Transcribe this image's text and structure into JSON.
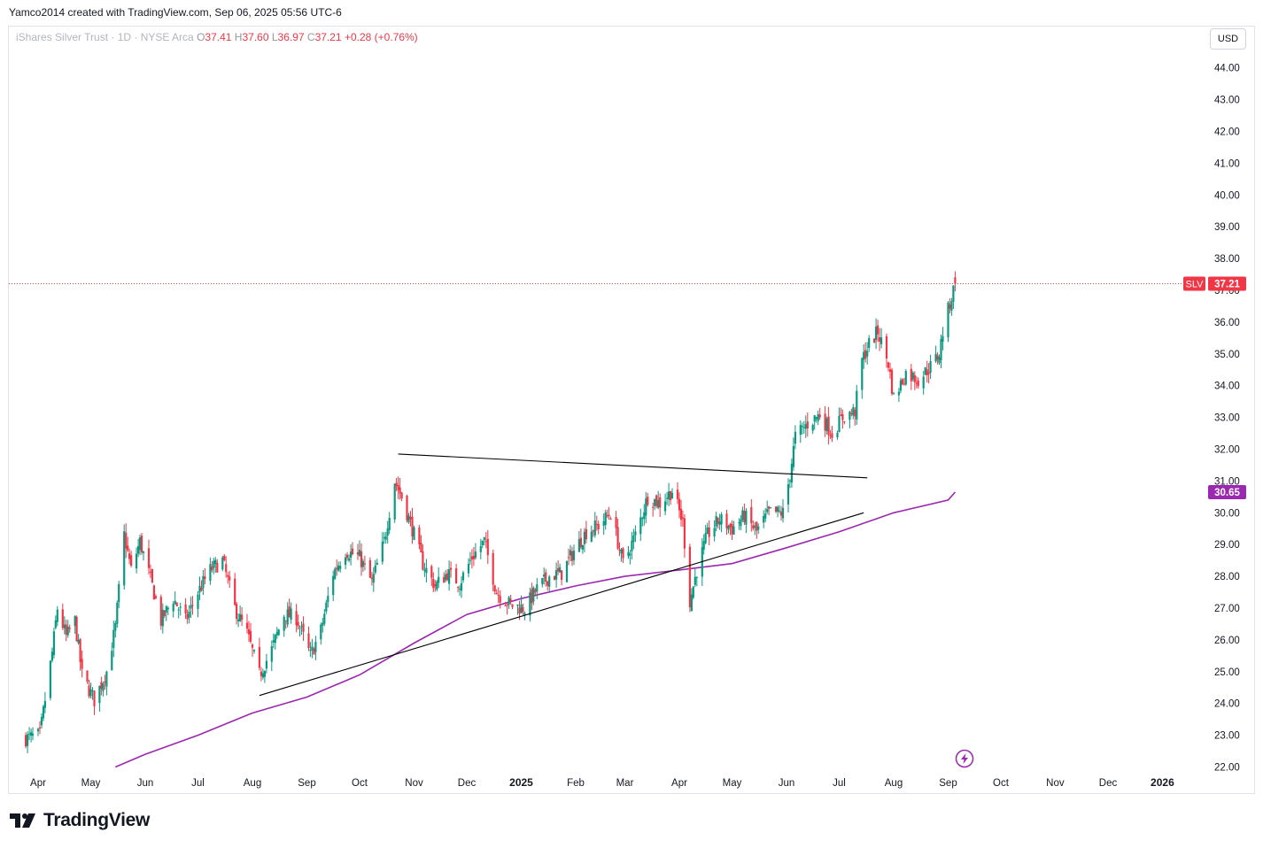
{
  "header": {
    "author_line": "Yamco2014 created with TradingView.com, Sep 06, 2025 05:56 UTC-6"
  },
  "legend": {
    "symbol_line": "iShares Silver Trust · 1D · NYSE Arca",
    "open_label": "O",
    "open": "37.41",
    "high_label": "H",
    "high": "37.60",
    "low_label": "L",
    "low": "36.97",
    "close_label": "C",
    "close": "37.21",
    "change": "+0.28 (+0.76%)"
  },
  "currency_button": "USD",
  "brand": {
    "name": "TradingView",
    "icon": "tradingview-logo-icon"
  },
  "colors": {
    "up": "#089981",
    "down": "#f23645",
    "sma": "#9c27b0",
    "trendline": "#000000",
    "price_line": "#f23645",
    "grid": "#e0e3eb"
  },
  "chart_data": {
    "type": "candlestick",
    "symbol": "SLV",
    "timeframe": "1D",
    "exchange": "NYSE Arca",
    "ylim": [
      22.0,
      44.7
    ],
    "y_ticks": [
      "22.00",
      "23.00",
      "24.00",
      "25.00",
      "26.00",
      "27.00",
      "28.00",
      "29.00",
      "30.00",
      "31.00",
      "32.00",
      "33.00",
      "34.00",
      "35.00",
      "36.00",
      "37.00",
      "38.00",
      "39.00",
      "40.00",
      "41.00",
      "42.00",
      "43.00",
      "44.00"
    ],
    "x_ticks": [
      {
        "label": "Apr",
        "date": "2024-04-01"
      },
      {
        "label": "May",
        "date": "2024-05-01"
      },
      {
        "label": "Jun",
        "date": "2024-06-01"
      },
      {
        "label": "Jul",
        "date": "2024-07-01"
      },
      {
        "label": "Aug",
        "date": "2024-08-01"
      },
      {
        "label": "Sep",
        "date": "2024-09-01"
      },
      {
        "label": "Oct",
        "date": "2024-10-01"
      },
      {
        "label": "Nov",
        "date": "2024-11-01"
      },
      {
        "label": "Dec",
        "date": "2024-12-01"
      },
      {
        "label": "2025",
        "date": "2025-01-01",
        "bold": true
      },
      {
        "label": "Feb",
        "date": "2025-02-01"
      },
      {
        "label": "Mar",
        "date": "2025-03-01"
      },
      {
        "label": "Apr",
        "date": "2025-04-01"
      },
      {
        "label": "May",
        "date": "2025-05-01"
      },
      {
        "label": "Jun",
        "date": "2025-06-01"
      },
      {
        "label": "Jul",
        "date": "2025-07-01"
      },
      {
        "label": "Aug",
        "date": "2025-08-01"
      },
      {
        "label": "Sep",
        "date": "2025-09-01"
      },
      {
        "label": "Oct",
        "date": "2025-10-01"
      },
      {
        "label": "Nov",
        "date": "2025-11-01"
      },
      {
        "label": "Dec",
        "date": "2025-12-01"
      },
      {
        "label": "2026",
        "date": "2026-01-01",
        "bold": true
      }
    ],
    "price_path": [
      [
        "2024-03-25",
        22.9
      ],
      [
        "2024-04-02",
        23.0
      ],
      [
        "2024-04-09",
        25.6
      ],
      [
        "2024-04-12",
        27.0
      ],
      [
        "2024-04-17",
        26.1
      ],
      [
        "2024-04-22",
        26.6
      ],
      [
        "2024-04-26",
        24.9
      ],
      [
        "2024-05-03",
        24.1
      ],
      [
        "2024-05-10",
        25.0
      ],
      [
        "2024-05-15",
        26.4
      ],
      [
        "2024-05-20",
        29.3
      ],
      [
        "2024-05-24",
        28.2
      ],
      [
        "2024-05-29",
        29.1
      ],
      [
        "2024-06-05",
        27.7
      ],
      [
        "2024-06-10",
        26.6
      ],
      [
        "2024-06-17",
        27.3
      ],
      [
        "2024-06-24",
        26.6
      ],
      [
        "2024-07-01",
        27.5
      ],
      [
        "2024-07-08",
        28.2
      ],
      [
        "2024-07-15",
        28.5
      ],
      [
        "2024-07-22",
        27.0
      ],
      [
        "2024-07-29",
        26.2
      ],
      [
        "2024-08-05",
        24.9
      ],
      [
        "2024-08-12",
        25.7
      ],
      [
        "2024-08-19",
        26.8
      ],
      [
        "2024-08-26",
        26.7
      ],
      [
        "2024-09-03",
        25.5
      ],
      [
        "2024-09-09",
        26.3
      ],
      [
        "2024-09-16",
        28.1
      ],
      [
        "2024-09-23",
        28.8
      ],
      [
        "2024-10-01",
        28.6
      ],
      [
        "2024-10-08",
        27.8
      ],
      [
        "2024-10-15",
        29.1
      ],
      [
        "2024-10-21",
        31.0
      ],
      [
        "2024-10-25",
        30.5
      ],
      [
        "2024-10-31",
        29.5
      ],
      [
        "2024-11-06",
        28.4
      ],
      [
        "2024-11-13",
        27.7
      ],
      [
        "2024-11-20",
        28.1
      ],
      [
        "2024-11-27",
        27.8
      ],
      [
        "2024-12-04",
        28.6
      ],
      [
        "2024-12-11",
        29.1
      ],
      [
        "2024-12-18",
        27.5
      ],
      [
        "2024-12-26",
        27.1
      ],
      [
        "2025-01-03",
        27.0
      ],
      [
        "2025-01-10",
        27.6
      ],
      [
        "2025-01-17",
        28.0
      ],
      [
        "2025-01-24",
        28.1
      ],
      [
        "2025-01-31",
        28.8
      ],
      [
        "2025-02-07",
        29.4
      ],
      [
        "2025-02-14",
        29.6
      ],
      [
        "2025-02-21",
        30.0
      ],
      [
        "2025-02-28",
        28.4
      ],
      [
        "2025-03-07",
        29.3
      ],
      [
        "2025-03-14",
        30.5
      ],
      [
        "2025-03-21",
        30.3
      ],
      [
        "2025-03-28",
        30.7
      ],
      [
        "2025-04-03",
        29.7
      ],
      [
        "2025-04-07",
        27.2
      ],
      [
        "2025-04-11",
        28.2
      ],
      [
        "2025-04-17",
        29.3
      ],
      [
        "2025-04-24",
        29.8
      ],
      [
        "2025-05-01",
        29.5
      ],
      [
        "2025-05-08",
        29.9
      ],
      [
        "2025-05-15",
        29.4
      ],
      [
        "2025-05-22",
        30.0
      ],
      [
        "2025-05-30",
        30.0
      ],
      [
        "2025-06-03",
        31.2
      ],
      [
        "2025-06-06",
        32.4
      ],
      [
        "2025-06-13",
        32.8
      ],
      [
        "2025-06-20",
        33.1
      ],
      [
        "2025-06-27",
        32.5
      ],
      [
        "2025-07-03",
        33.0
      ],
      [
        "2025-07-10",
        33.2
      ],
      [
        "2025-07-14",
        34.8
      ],
      [
        "2025-07-18",
        35.3
      ],
      [
        "2025-07-23",
        35.7
      ],
      [
        "2025-07-29",
        34.7
      ],
      [
        "2025-08-01",
        33.6
      ],
      [
        "2025-08-08",
        34.4
      ],
      [
        "2025-08-15",
        34.2
      ],
      [
        "2025-08-22",
        34.6
      ],
      [
        "2025-08-27",
        35.0
      ],
      [
        "2025-08-29",
        35.7
      ],
      [
        "2025-09-02",
        36.6
      ],
      [
        "2025-09-04",
        37.0
      ],
      [
        "2025-09-05",
        37.21
      ]
    ],
    "last_candle": {
      "date": "2025-09-05",
      "open": 37.41,
      "high": 37.6,
      "low": 36.97,
      "close": 37.21
    },
    "sma": {
      "color": "#9c27b0",
      "last_value": "30.65",
      "points": [
        [
          "2024-05-15",
          22.0
        ],
        [
          "2024-06-01",
          22.4
        ],
        [
          "2024-07-01",
          23.0
        ],
        [
          "2024-08-01",
          23.7
        ],
        [
          "2024-09-01",
          24.2
        ],
        [
          "2024-10-01",
          24.9
        ],
        [
          "2024-11-01",
          25.9
        ],
        [
          "2024-12-01",
          26.8
        ],
        [
          "2025-01-01",
          27.3
        ],
        [
          "2025-02-01",
          27.7
        ],
        [
          "2025-03-01",
          28.0
        ],
        [
          "2025-04-01",
          28.2
        ],
        [
          "2025-05-01",
          28.4
        ],
        [
          "2025-06-01",
          28.9
        ],
        [
          "2025-07-01",
          29.4
        ],
        [
          "2025-08-01",
          30.0
        ],
        [
          "2025-09-01",
          30.4
        ],
        [
          "2025-09-05",
          30.65
        ]
      ]
    },
    "trendlines": [
      {
        "name": "upper",
        "start": [
          "2024-10-23",
          31.85
        ],
        "end": [
          "2025-07-17",
          31.1
        ]
      },
      {
        "name": "lower",
        "start": [
          "2024-08-05",
          24.25
        ],
        "end": [
          "2025-07-15",
          30.0
        ]
      }
    ],
    "price_line": {
      "value": 37.21,
      "symbol_label": "SLV",
      "value_label": "37.21"
    },
    "timeline_marker_icon": "lightning-icon"
  }
}
